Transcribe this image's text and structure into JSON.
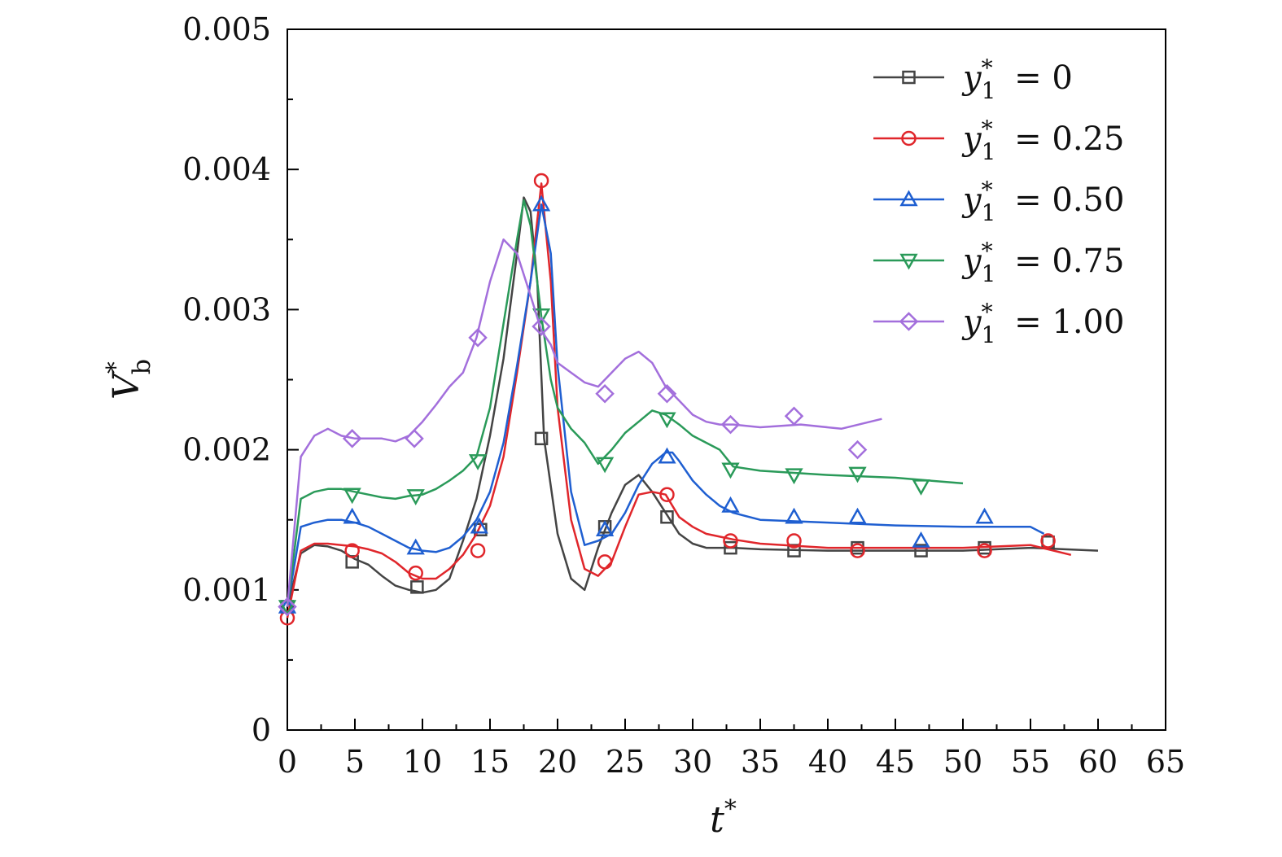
{
  "chart_data": {
    "type": "line",
    "title": "",
    "xlabel": {
      "base": "t",
      "sup": "*"
    },
    "ylabel": {
      "base": "V",
      "sub": "b",
      "sup": "*"
    },
    "xlim": [
      0,
      65
    ],
    "ylim": [
      0,
      0.005
    ],
    "x_ticks": [
      0,
      5,
      10,
      15,
      20,
      25,
      30,
      35,
      40,
      45,
      50,
      55,
      60,
      65
    ],
    "x_tick_labels": [
      "0",
      "5",
      "10",
      "15",
      "20",
      "25",
      "30",
      "35",
      "40",
      "45",
      "50",
      "55",
      "60",
      "65"
    ],
    "y_ticks": [
      0,
      0.001,
      0.002,
      0.003,
      0.004,
      0.005
    ],
    "y_tick_labels": [
      "0",
      "0.001",
      "0.002",
      "0.003",
      "0.004",
      "0.005"
    ],
    "grid": false,
    "legend_position": "top-right",
    "series": [
      {
        "name": "y1* = 0",
        "legend": {
          "var": "y",
          "sub": "1",
          "sup": "*",
          "rel": "=",
          "val": "0"
        },
        "color": "#444444",
        "marker": "square",
        "x": [
          0,
          1,
          2,
          3,
          4,
          5,
          6,
          7,
          8,
          9,
          10,
          11,
          12,
          13,
          14,
          15,
          16,
          17,
          17.5,
          18,
          18.5,
          19,
          20,
          21,
          22,
          23,
          24,
          25,
          26,
          27,
          28,
          29,
          30,
          31,
          32,
          33,
          35,
          40,
          45,
          50,
          55,
          60
        ],
        "y": [
          0.00088,
          0.00126,
          0.00132,
          0.00131,
          0.00128,
          0.00122,
          0.00118,
          0.0011,
          0.00103,
          0.001,
          0.00098,
          0.001,
          0.00108,
          0.00135,
          0.00165,
          0.0021,
          0.00265,
          0.0034,
          0.0038,
          0.0037,
          0.0032,
          0.00208,
          0.0014,
          0.00108,
          0.001,
          0.0013,
          0.00155,
          0.00175,
          0.00182,
          0.0017,
          0.00155,
          0.0014,
          0.00133,
          0.0013,
          0.0013,
          0.0013,
          0.00129,
          0.00128,
          0.00128,
          0.00128,
          0.0013,
          0.00128
        ],
        "markers_x": [
          0,
          4.8,
          9.6,
          14.3,
          18.8,
          23.5,
          28.1,
          32.8,
          37.5,
          42.2,
          46.9,
          51.6,
          56.3
        ],
        "markers_y": [
          0.00088,
          0.0012,
          0.00102,
          0.00143,
          0.00208,
          0.00145,
          0.00152,
          0.0013,
          0.00128,
          0.0013,
          0.00128,
          0.0013,
          0.00134
        ]
      },
      {
        "name": "y1* = 0.25",
        "legend": {
          "var": "y",
          "sub": "1",
          "sup": "*",
          "rel": "=",
          "val": "0.25"
        },
        "color": "#e0262b",
        "marker": "circle",
        "x": [
          0,
          1,
          2,
          3,
          4,
          5,
          6,
          7,
          8,
          9,
          10,
          11,
          12,
          13,
          14,
          15,
          16,
          17,
          18,
          18.8,
          19.5,
          20,
          21,
          22,
          23,
          24,
          25,
          26,
          27,
          28,
          29,
          30,
          31,
          32,
          33,
          35,
          40,
          45,
          50,
          55,
          58
        ],
        "y": [
          0.0008,
          0.00128,
          0.00133,
          0.00133,
          0.00132,
          0.00131,
          0.00129,
          0.00126,
          0.0012,
          0.00112,
          0.00108,
          0.00108,
          0.00115,
          0.00125,
          0.0014,
          0.0016,
          0.00195,
          0.00255,
          0.0032,
          0.0039,
          0.0032,
          0.0023,
          0.0015,
          0.00115,
          0.0011,
          0.0012,
          0.00145,
          0.00168,
          0.0017,
          0.00168,
          0.00152,
          0.00145,
          0.0014,
          0.00138,
          0.00136,
          0.00133,
          0.0013,
          0.0013,
          0.0013,
          0.00132,
          0.00125
        ],
        "markers_x": [
          0,
          4.8,
          9.5,
          14.1,
          18.8,
          23.5,
          28.1,
          32.8,
          37.5,
          42.2,
          51.6,
          56.3
        ],
        "markers_y": [
          0.0008,
          0.00128,
          0.00112,
          0.00128,
          0.00392,
          0.0012,
          0.00168,
          0.00135,
          0.00135,
          0.00128,
          0.00128,
          0.00135
        ]
      },
      {
        "name": "y1* = 0.50",
        "legend": {
          "var": "y",
          "sub": "1",
          "sup": "*",
          "rel": "=",
          "val": "0.50"
        },
        "color": "#1f5fd1",
        "marker": "triangle-up",
        "x": [
          0,
          1,
          2,
          3,
          4,
          5,
          6,
          7,
          8,
          9,
          10,
          11,
          12,
          13,
          14,
          15,
          16,
          17,
          18,
          18.8,
          19.5,
          20,
          21,
          22,
          23,
          24,
          25,
          26,
          27,
          28,
          28.5,
          29,
          30,
          31,
          32,
          33,
          35,
          40,
          45,
          50,
          55,
          56
        ],
        "y": [
          0.00088,
          0.00145,
          0.00148,
          0.0015,
          0.0015,
          0.00148,
          0.00145,
          0.0014,
          0.00135,
          0.0013,
          0.00128,
          0.00127,
          0.0013,
          0.00138,
          0.0015,
          0.0017,
          0.00205,
          0.0026,
          0.0032,
          0.00375,
          0.0034,
          0.0026,
          0.0017,
          0.00132,
          0.00135,
          0.0014,
          0.00155,
          0.00175,
          0.0019,
          0.00198,
          0.00198,
          0.00192,
          0.00178,
          0.00168,
          0.0016,
          0.00155,
          0.0015,
          0.00148,
          0.00146,
          0.00145,
          0.00145,
          0.0014
        ],
        "markers_x": [
          0,
          4.8,
          9.5,
          14.2,
          18.8,
          23.5,
          28.1,
          32.8,
          37.5,
          42.2,
          46.9,
          51.6
        ],
        "markers_y": [
          0.00088,
          0.00152,
          0.0013,
          0.00145,
          0.00375,
          0.00143,
          0.00195,
          0.0016,
          0.00152,
          0.00152,
          0.00135,
          0.00152
        ]
      },
      {
        "name": "y1* = 0.75",
        "legend": {
          "var": "y",
          "sub": "1",
          "sup": "*",
          "rel": "=",
          "val": "0.75"
        },
        "color": "#2a9a59",
        "marker": "triangle-down",
        "x": [
          0,
          1,
          2,
          3,
          4,
          5,
          6,
          7,
          8,
          9,
          10,
          11,
          12,
          13,
          14,
          15,
          16,
          17,
          17.5,
          18,
          18.8,
          19.5,
          20,
          21,
          22,
          23,
          24,
          25,
          26,
          27,
          28,
          29,
          30,
          31,
          32,
          33,
          35,
          40,
          45,
          50
        ],
        "y": [
          0.00088,
          0.00165,
          0.0017,
          0.00172,
          0.00172,
          0.0017,
          0.00168,
          0.00166,
          0.00165,
          0.00167,
          0.00168,
          0.00172,
          0.00178,
          0.00185,
          0.00195,
          0.0023,
          0.0029,
          0.0035,
          0.00378,
          0.0036,
          0.00295,
          0.0025,
          0.0023,
          0.00215,
          0.00205,
          0.0019,
          0.002,
          0.00212,
          0.0022,
          0.00228,
          0.00225,
          0.00218,
          0.0021,
          0.00205,
          0.002,
          0.00188,
          0.00185,
          0.00182,
          0.0018,
          0.00176
        ],
        "markers_x": [
          0,
          4.8,
          9.5,
          14.1,
          18.8,
          23.5,
          28.1,
          32.8,
          37.5,
          42.2,
          46.9
        ],
        "markers_y": [
          0.00088,
          0.00168,
          0.00167,
          0.00192,
          0.00296,
          0.0019,
          0.00222,
          0.00186,
          0.00182,
          0.00183,
          0.00174
        ]
      },
      {
        "name": "y1* = 1.00",
        "legend": {
          "var": "y",
          "sub": "1",
          "sup": "*",
          "rel": "=",
          "val": "1.00"
        },
        "color": "#a36fdc",
        "marker": "diamond",
        "x": [
          0,
          1,
          2,
          3,
          4,
          5,
          6,
          7,
          8,
          9,
          10,
          11,
          12,
          13,
          14,
          15,
          16,
          17,
          18,
          18.8,
          19.5,
          20,
          21,
          22,
          23,
          24,
          25,
          26,
          27,
          28,
          29,
          30,
          31,
          32,
          33,
          35,
          38,
          41,
          44
        ],
        "y": [
          0.00088,
          0.00195,
          0.0021,
          0.00215,
          0.0021,
          0.00208,
          0.00208,
          0.00208,
          0.00206,
          0.0021,
          0.0022,
          0.00232,
          0.00245,
          0.00255,
          0.0028,
          0.0032,
          0.0035,
          0.0034,
          0.0031,
          0.00285,
          0.00275,
          0.00262,
          0.00255,
          0.00248,
          0.00245,
          0.00255,
          0.00265,
          0.0027,
          0.00262,
          0.00245,
          0.00235,
          0.00225,
          0.0022,
          0.00218,
          0.00218,
          0.00216,
          0.00218,
          0.00215,
          0.00222
        ],
        "markers_x": [
          0,
          4.8,
          9.4,
          14.1,
          18.8,
          23.5,
          28.1,
          32.8,
          37.5,
          42.2
        ],
        "markers_y": [
          0.00088,
          0.00208,
          0.00208,
          0.0028,
          0.00288,
          0.0024,
          0.0024,
          0.00218,
          0.00224,
          0.002
        ]
      }
    ]
  }
}
